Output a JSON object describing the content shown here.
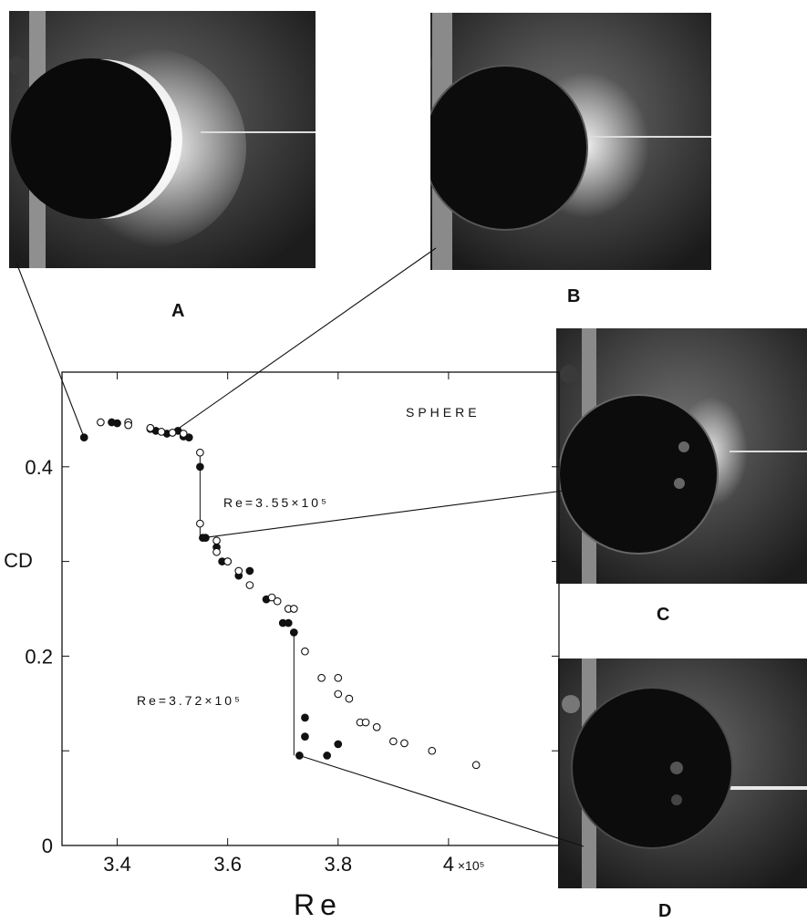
{
  "panels": {
    "a": {
      "label": "A",
      "icon": "sphere-photo-subcritical-wake"
    },
    "b": {
      "label": "B",
      "icon": "sphere-photo-first-transition"
    },
    "c": {
      "label": "C",
      "icon": "sphere-photo-separation-bubble"
    },
    "d": {
      "label": "D",
      "icon": "sphere-photo-supercritical-wake"
    }
  },
  "chart_data": {
    "type": "scatter",
    "title": "SPHERE",
    "xlabel": "Re",
    "ylabel": "CD",
    "xlim": [
      3.3,
      4.2
    ],
    "ylim": [
      0,
      0.5
    ],
    "x_ticks": [
      3.4,
      3.6,
      3.8,
      4.0
    ],
    "x_tick_labels": [
      "3.4",
      "3.6",
      "3.8",
      "4"
    ],
    "x_multiplier_label": "×10⁵",
    "y_ticks": [
      0,
      0.2,
      0.4
    ],
    "y_tick_labels": [
      "0",
      "0.2",
      "0.4"
    ],
    "annotations": [
      {
        "text": "Re=3.55×10⁵",
        "x": 3.55,
        "y": 0.33
      },
      {
        "text": "Re=3.72×10⁵",
        "x": 3.72,
        "y": 0.095
      }
    ],
    "series": [
      {
        "marker": "filled-circle",
        "x": [
          3.34,
          3.39,
          3.4,
          3.46,
          3.47,
          3.49,
          3.5,
          3.51,
          3.52,
          3.53,
          3.55,
          3.555,
          3.56,
          3.58,
          3.59,
          3.6,
          3.62,
          3.64,
          3.67,
          3.7,
          3.71,
          3.72,
          3.74,
          3.74,
          3.73,
          3.78,
          3.8
        ],
        "y": [
          0.431,
          0.447,
          0.446,
          0.44,
          0.438,
          0.435,
          0.436,
          0.438,
          0.432,
          0.431,
          0.4,
          0.325,
          0.325,
          0.315,
          0.3,
          0.3,
          0.285,
          0.29,
          0.26,
          0.235,
          0.235,
          0.225,
          0.135,
          0.115,
          0.095,
          0.095,
          0.107
        ]
      },
      {
        "marker": "open-circle",
        "x": [
          3.37,
          3.42,
          3.42,
          3.46,
          3.48,
          3.5,
          3.52,
          3.55,
          3.55,
          3.58,
          3.58,
          3.6,
          3.62,
          3.64,
          3.68,
          3.69,
          3.71,
          3.72,
          3.74,
          3.77,
          3.8,
          3.8,
          3.82,
          3.84,
          3.85,
          3.87,
          3.9,
          3.92,
          3.97,
          4.05
        ],
        "y": [
          0.447,
          0.447,
          0.444,
          0.441,
          0.437,
          0.436,
          0.435,
          0.415,
          0.34,
          0.322,
          0.31,
          0.3,
          0.29,
          0.275,
          0.262,
          0.258,
          0.25,
          0.25,
          0.205,
          0.177,
          0.177,
          0.16,
          0.155,
          0.13,
          0.13,
          0.125,
          0.11,
          0.108,
          0.1,
          0.085
        ]
      }
    ],
    "connectors": [
      {
        "panel": "A",
        "x": 3.34,
        "y": 0.431
      },
      {
        "panel": "B",
        "x": 3.5,
        "y": 0.436
      },
      {
        "panel": "C",
        "x": 3.555,
        "y": 0.325
      },
      {
        "panel": "D",
        "x": 3.73,
        "y": 0.095
      }
    ],
    "step_lines": [
      {
        "x": 3.55,
        "y0": 0.417,
        "y1": 0.325
      },
      {
        "x": 3.72,
        "y0": 0.228,
        "y1": 0.095
      }
    ]
  }
}
